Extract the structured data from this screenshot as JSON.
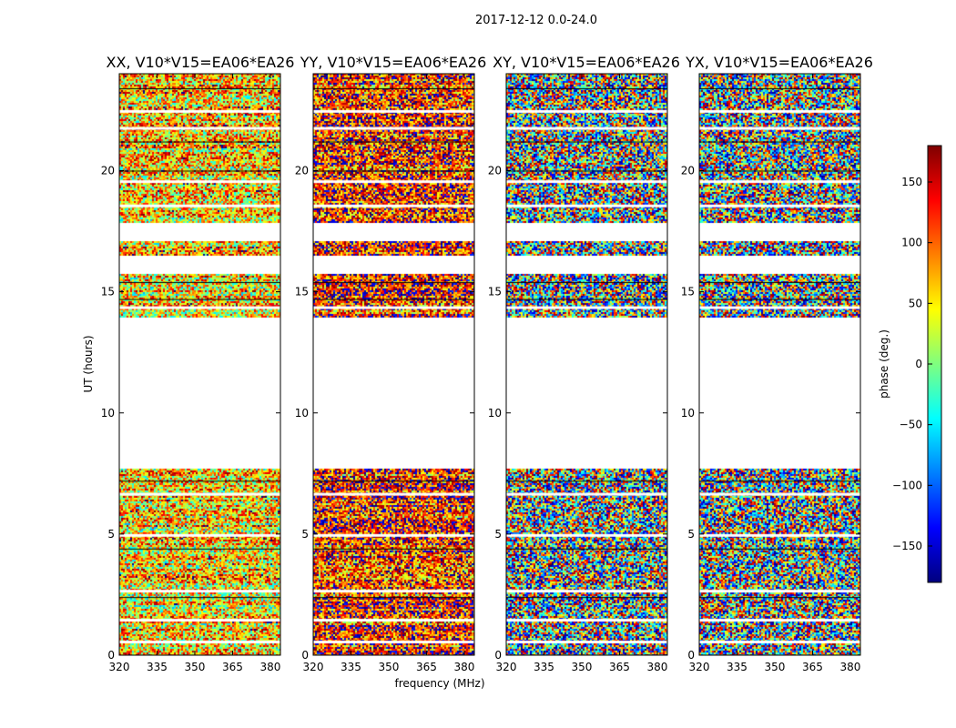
{
  "chart_data": {
    "type": "heatmap",
    "suptitle": "2017-12-12 0.0-24.0",
    "xlabel": "frequency (MHz)",
    "ylabel": "UT (hours)",
    "xlim": [
      320,
      384
    ],
    "ylim": [
      0,
      24
    ],
    "xticks": [
      "320",
      "335",
      "350",
      "365",
      "380"
    ],
    "yticks": [
      "0",
      "5",
      "10",
      "15",
      "20"
    ],
    "panels": [
      {
        "title": "XX, V10*V15=EA06*EA26",
        "mean_phase": 60,
        "spread": 200
      },
      {
        "title": "YY, V10*V15=EA06*EA26",
        "mean_phase": 120,
        "spread": 200
      },
      {
        "title": "XY, V10*V15=EA06*EA26",
        "mean_phase": 0,
        "spread": 360
      },
      {
        "title": "YX, V10*V15=EA06*EA26",
        "mean_phase": 0,
        "spread": 360
      }
    ],
    "flagged_ut_ranges": [
      [
        7.7,
        14.0
      ],
      [
        15.8,
        16.5
      ],
      [
        17.1,
        17.9
      ]
    ],
    "colorbar": {
      "label": "phase (deg.)",
      "range": [
        -180,
        180
      ],
      "ticks": [
        "150",
        "100",
        "50",
        "0",
        "−50",
        "−100",
        "−150"
      ],
      "tick_values": [
        150,
        100,
        50,
        0,
        -50,
        -100,
        -150
      ],
      "colormap": [
        "#00007f",
        "#0000ff",
        "#007fff",
        "#00ffff",
        "#7fff7f",
        "#ffff00",
        "#ff7f00",
        "#ff0000",
        "#7f0000"
      ]
    }
  }
}
